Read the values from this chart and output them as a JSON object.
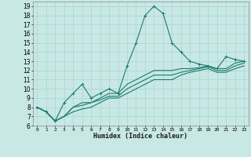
{
  "xlabel": "Humidex (Indice chaleur)",
  "x_values": [
    0,
    1,
    2,
    3,
    4,
    5,
    6,
    7,
    8,
    9,
    10,
    11,
    12,
    13,
    14,
    15,
    16,
    17,
    18,
    19,
    20,
    21,
    22,
    23
  ],
  "main_line": [
    8.0,
    7.5,
    6.5,
    8.5,
    9.5,
    10.5,
    9.0,
    9.5,
    10.0,
    9.5,
    12.5,
    15.0,
    18.0,
    19.0,
    18.2,
    15.0,
    14.0,
    13.0,
    12.7,
    12.5,
    12.2,
    13.5,
    13.2,
    13.0
  ],
  "line2": [
    8.0,
    7.5,
    6.5,
    7.0,
    8.0,
    8.5,
    8.5,
    9.0,
    9.5,
    9.5,
    10.5,
    11.0,
    11.5,
    12.0,
    12.0,
    12.0,
    12.2,
    12.2,
    12.3,
    12.5,
    12.2,
    12.2,
    12.8,
    13.0
  ],
  "line3": [
    8.0,
    7.5,
    6.5,
    7.0,
    8.0,
    8.2,
    8.5,
    8.8,
    9.2,
    9.2,
    10.0,
    10.5,
    11.0,
    11.5,
    11.5,
    11.5,
    11.8,
    12.0,
    12.2,
    12.4,
    12.0,
    12.0,
    12.5,
    12.8
  ],
  "line4": [
    8.0,
    7.5,
    6.5,
    7.0,
    7.5,
    7.8,
    8.0,
    8.5,
    9.0,
    9.0,
    9.5,
    10.0,
    10.5,
    11.0,
    11.0,
    11.0,
    11.5,
    11.8,
    12.0,
    12.2,
    11.8,
    11.8,
    12.2,
    12.5
  ],
  "ylim": [
    6,
    19.5
  ],
  "yticks": [
    6,
    7,
    8,
    9,
    10,
    11,
    12,
    13,
    14,
    15,
    16,
    17,
    18,
    19
  ],
  "line_color": "#1a7a6e",
  "bg_color": "#c8e8e5",
  "grid_color": "#aad4d0"
}
